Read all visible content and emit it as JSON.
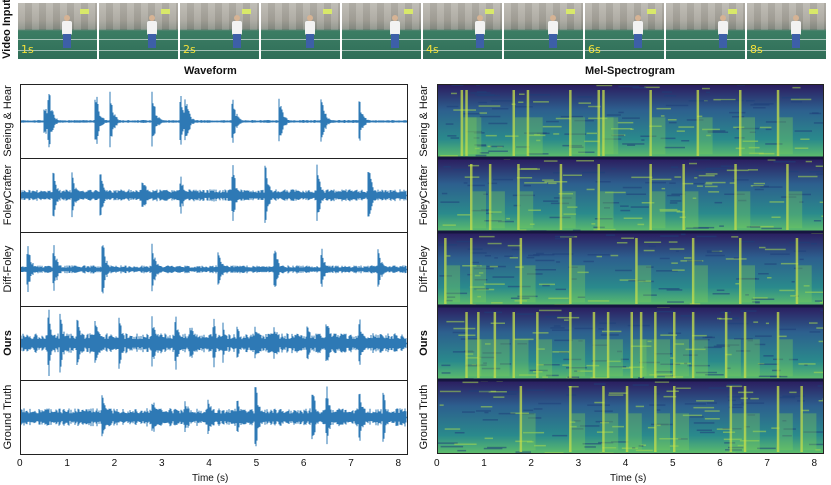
{
  "figure": {
    "video_label": "Video Input",
    "frame_time_labels": [
      "1s",
      "",
      "2s",
      "",
      "",
      "4s",
      "",
      "6s",
      "",
      "8s"
    ],
    "waveform_title": "Waveform",
    "spectrogram_title": "Mel-Spectrogram",
    "rows": [
      {
        "label": "Seeing & Hear",
        "bold": false
      },
      {
        "label": "FoleyCrafter",
        "bold": false
      },
      {
        "label": "Diff-Foley",
        "bold": false
      },
      {
        "label": "Ours",
        "bold": true
      },
      {
        "label": "Ground Truth",
        "bold": false
      }
    ],
    "x_ticks": [
      "0",
      "1",
      "2",
      "3",
      "4",
      "5",
      "6",
      "7",
      "8"
    ],
    "x_axis_label": "Time (s)",
    "colors": {
      "waveform": "#2e79b5",
      "spectro_dark": "#2b1b5e",
      "spectro_mid": "#2a8a8c",
      "spectro_bright": "#c8e04a"
    }
  },
  "chart_data": {
    "type": "waveform",
    "x_range": [
      0,
      8.2
    ],
    "event_times": {
      "Seeing & Hear": [
        0.5,
        0.6,
        1.6,
        1.9,
        2.8,
        3.4,
        3.5,
        4.5,
        5.5,
        6.4,
        7.2
      ],
      "FoleyCrafter": [
        0.7,
        1.1,
        1.7,
        2.6,
        3.4,
        4.5,
        5.2,
        6.3,
        7.4
      ],
      "Diff-Foley": [
        0.15,
        0.7,
        1.75,
        2.8,
        4.2,
        5.4,
        6.4,
        7.6
      ],
      "Ours": [
        0.6,
        0.85,
        1.2,
        1.6,
        2.1,
        2.8,
        3.3,
        3.6,
        4.1,
        4.3,
        4.6,
        5.0,
        5.4,
        6.1,
        6.5,
        7.2
      ],
      "Ground Truth": [
        1.75,
        2.8,
        3.5,
        4.0,
        4.6,
        5.0,
        6.2,
        6.5,
        7.2,
        7.7
      ]
    }
  }
}
